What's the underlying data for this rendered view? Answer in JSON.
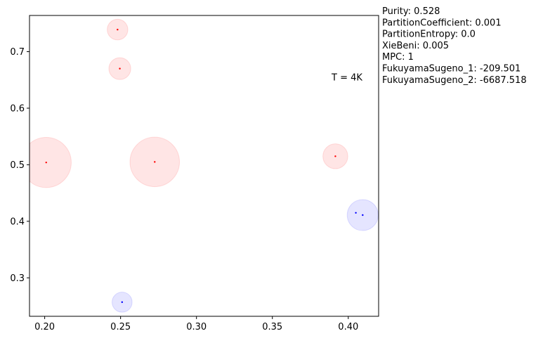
{
  "chart_data": {
    "type": "scatter",
    "xlim": [
      0.19,
      0.42
    ],
    "ylim": [
      0.232,
      0.764
    ],
    "x_ticks": [
      "0.20",
      "0.25",
      "0.30",
      "0.35",
      "0.40"
    ],
    "x_tick_values": [
      0.2,
      0.25,
      0.3,
      0.35,
      0.4
    ],
    "y_ticks": [
      "0.3",
      "0.4",
      "0.5",
      "0.6",
      "0.7"
    ],
    "y_tick_values": [
      0.3,
      0.4,
      0.5,
      0.6,
      0.7
    ],
    "grid": false,
    "clusters": [
      {
        "color": "#ff0000",
        "x": 0.248,
        "y": 0.739,
        "radius": 0.0068
      },
      {
        "color": "#ff0000",
        "x": 0.2495,
        "y": 0.67,
        "radius": 0.0072
      },
      {
        "color": "#ff0000",
        "x": 0.201,
        "y": 0.504,
        "radius": 0.0165
      },
      {
        "color": "#ff0000",
        "x": 0.2725,
        "y": 0.505,
        "radius": 0.0163
      },
      {
        "color": "#ff0000",
        "x": 0.3915,
        "y": 0.515,
        "radius": 0.0082
      },
      {
        "color": "#0000ff",
        "x": 0.4095,
        "y": 0.411,
        "radius": 0.0102
      },
      {
        "color": "#0000ff",
        "x": 0.251,
        "y": 0.257,
        "radius": 0.0066
      }
    ],
    "points": [
      {
        "x": 0.248,
        "y": 0.739,
        "color": "#ff0000"
      },
      {
        "x": 0.2495,
        "y": 0.67,
        "color": "#ff0000"
      },
      {
        "x": 0.201,
        "y": 0.504,
        "color": "#ff0000"
      },
      {
        "x": 0.2725,
        "y": 0.505,
        "color": "#ff0000"
      },
      {
        "x": 0.3915,
        "y": 0.515,
        "color": "#ff0000"
      },
      {
        "x": 0.405,
        "y": 0.415,
        "color": "#0000ff"
      },
      {
        "x": 0.4095,
        "y": 0.411,
        "color": "#0000ff"
      },
      {
        "x": 0.251,
        "y": 0.257,
        "color": "#0000ff"
      }
    ],
    "annotation": "T = 4K",
    "annotation_pos": {
      "x": 0.389,
      "y": 0.649
    },
    "metrics": [
      "Purity: 0.528",
      "PartitionCoefficient: 0.001",
      "PartitionEntropy: 0.0",
      "XieBeni: 0.005",
      "MPC: 1",
      "FukuyamaSugeno_1: -209.501",
      "FukuyamaSugeno_2: -6687.518"
    ]
  }
}
